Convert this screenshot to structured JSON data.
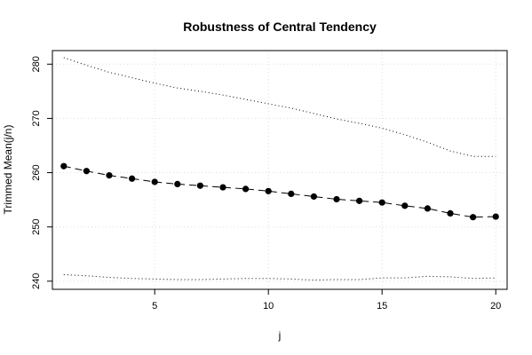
{
  "chart_data": {
    "type": "line",
    "title": "Robustness of Central Tendency",
    "xlabel": "j",
    "ylabel": "Trimmed Mean(j/n)",
    "xlim": [
      0.5,
      20.5
    ],
    "ylim": [
      238.5,
      282.5
    ],
    "x_ticks": [
      5,
      10,
      15,
      20
    ],
    "y_ticks": [
      240,
      250,
      260,
      270,
      280
    ],
    "grid": true,
    "x": [
      1,
      2,
      3,
      4,
      5,
      6,
      7,
      8,
      9,
      10,
      11,
      12,
      13,
      14,
      15,
      16,
      17,
      18,
      19,
      20
    ],
    "series": [
      {
        "role": "mean",
        "style": "dashed-with-points",
        "values": [
          261.2,
          260.3,
          259.5,
          258.9,
          258.3,
          257.9,
          257.6,
          257.3,
          257.0,
          256.6,
          256.1,
          255.6,
          255.1,
          254.8,
          254.5,
          253.9,
          253.4,
          252.5,
          251.8,
          251.9
        ]
      },
      {
        "role": "upper",
        "style": "dotted",
        "values": [
          281.2,
          279.8,
          278.5,
          277.5,
          276.5,
          275.6,
          275.0,
          274.3,
          273.5,
          272.7,
          271.9,
          270.9,
          269.9,
          269.1,
          268.2,
          267.0,
          265.6,
          264.0,
          263.0,
          263.0
        ]
      },
      {
        "role": "lower",
        "style": "dotted",
        "values": [
          241.2,
          241.0,
          240.7,
          240.5,
          240.4,
          240.3,
          240.3,
          240.4,
          240.5,
          240.5,
          240.4,
          240.2,
          240.3,
          240.3,
          240.6,
          240.6,
          240.9,
          240.8,
          240.5,
          240.6
        ]
      }
    ]
  }
}
